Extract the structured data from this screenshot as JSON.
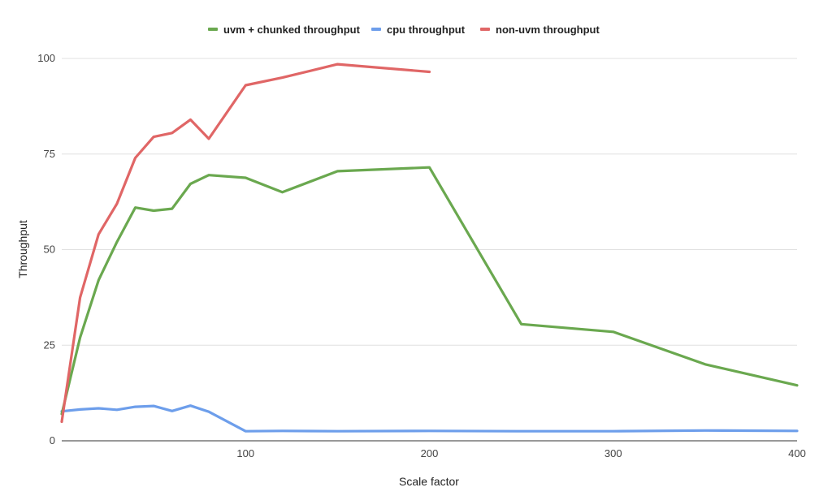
{
  "chart_data": {
    "type": "line",
    "title": "",
    "xlabel": "Scale factor",
    "ylabel": "Throughput",
    "xlim": [
      0,
      400
    ],
    "ylim": [
      0,
      100
    ],
    "x_ticks": [
      100,
      200,
      300,
      400
    ],
    "y_ticks": [
      0,
      25,
      50,
      75,
      100
    ],
    "grid": true,
    "legend_position": "top",
    "series": [
      {
        "name": "uvm + chunked throughput",
        "color": "#6aa84f",
        "x": [
          0,
          10,
          20,
          30,
          40,
          50,
          60,
          70,
          80,
          100,
          120,
          150,
          200,
          250,
          300,
          350,
          400
        ],
        "values": [
          7,
          27,
          42,
          52,
          61,
          60.2,
          60.7,
          67.2,
          69.5,
          68.8,
          65,
          70.5,
          71.5,
          30.5,
          28.5,
          20,
          14.5
        ]
      },
      {
        "name": "cpu throughput",
        "color": "#6d9eeb",
        "x": [
          0,
          10,
          20,
          30,
          40,
          50,
          60,
          70,
          80,
          100,
          120,
          150,
          200,
          250,
          300,
          350,
          400
        ],
        "values": [
          7.7,
          8.2,
          8.5,
          8.1,
          8.9,
          9.1,
          7.8,
          9.2,
          7.6,
          2.5,
          2.6,
          2.5,
          2.6,
          2.5,
          2.5,
          2.7,
          2.6
        ]
      },
      {
        "name": "non-uvm throughput",
        "color": "#e06666",
        "x": [
          0,
          10,
          20,
          30,
          40,
          50,
          60,
          70,
          80,
          100,
          120,
          150,
          200
        ],
        "values": [
          5,
          37.5,
          54,
          62,
          74,
          79.5,
          80.5,
          84,
          79,
          93,
          95,
          98.5,
          96.5
        ]
      }
    ]
  }
}
